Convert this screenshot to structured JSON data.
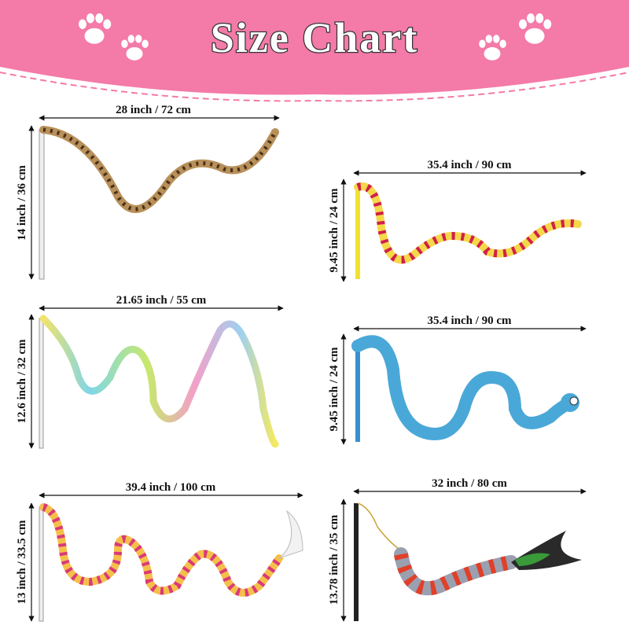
{
  "header": {
    "title": "Size Chart"
  },
  "items": [
    {
      "width": "28 inch / 72 cm",
      "height": "14 inch / 36 cm"
    },
    {
      "width": "35.4 inch / 90 cm",
      "height": "9.45 inch / 24 cm"
    },
    {
      "width": "21.65 inch / 55 cm",
      "height": "12.6 inch / 32 cm"
    },
    {
      "width": "35.4 inch / 90 cm",
      "height": "9.45 inch / 24 cm"
    },
    {
      "width": "39.4 inch / 100 cm",
      "height": "13 inch / 33.5 cm"
    },
    {
      "width": "32 inch / 80 cm",
      "height": "13.78 inch / 35 cm"
    }
  ]
}
